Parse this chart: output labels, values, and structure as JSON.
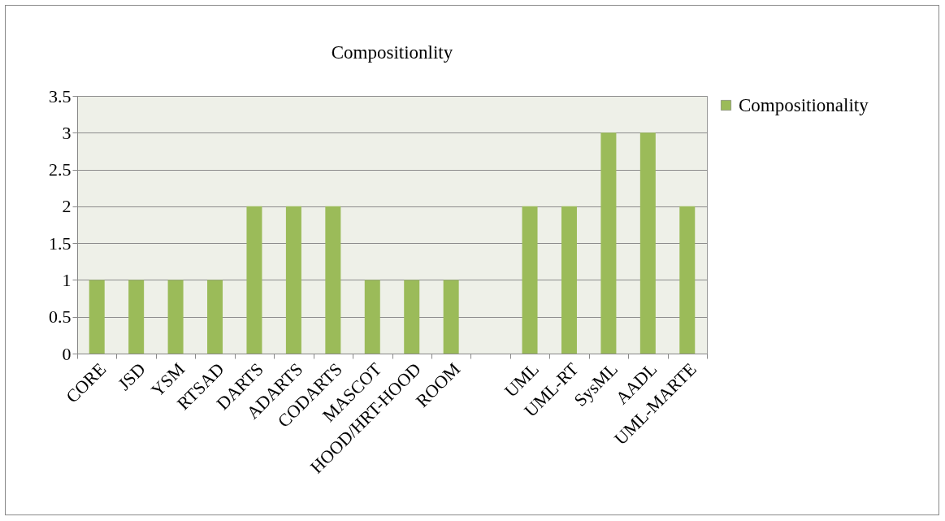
{
  "chart_data": {
    "type": "bar",
    "title": "Compositionlity",
    "categories": [
      "CORE",
      "JSD",
      "YSM",
      "RTSAD",
      "DARTS",
      "ADARTS",
      "CODARTS",
      "MASCOT",
      "HOOD/HRT-HOOD",
      "ROOM",
      null,
      "UML",
      "UML-RT",
      "SysML",
      "AADL",
      "UML-MARTE"
    ],
    "series": [
      {
        "name": "Compositionality",
        "color": "#9bbb59",
        "values": [
          1,
          1,
          1,
          1,
          2,
          2,
          2,
          1,
          1,
          1,
          null,
          2,
          2,
          3,
          3,
          2
        ]
      }
    ],
    "ylim": [
      0,
      3.5
    ],
    "yticks": [
      0,
      0.5,
      1,
      1.5,
      2,
      2.5,
      3,
      3.5
    ],
    "grid": "y",
    "legend": "right"
  }
}
